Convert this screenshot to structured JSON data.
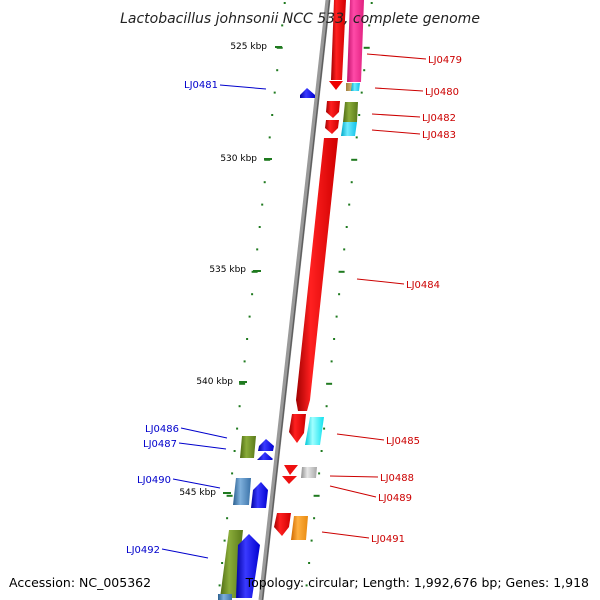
{
  "map": {
    "title": "Lactobacillus johnsonii NCC 533, complete genome",
    "accession": "Accession: NC_005362",
    "summary": "Topology: circular; Length: 1,992,676 bp; Genes: 1,918",
    "colors": {
      "backbone": "#909090",
      "tick": "#1f7a1f",
      "forward_label": "#cc0000",
      "reverse_label": "#0000cc"
    },
    "scale": [
      {
        "kbp": 525,
        "label": "525 kbp"
      },
      {
        "kbp": 530,
        "label": "530 kbp"
      },
      {
        "kbp": 535,
        "label": "535 kbp"
      },
      {
        "kbp": 540,
        "label": "540 kbp"
      },
      {
        "kbp": 545,
        "label": "545 kbp"
      }
    ],
    "genes": [
      {
        "id": "LJ0479",
        "label": "LJ0479",
        "strand": "forward",
        "cog_color": "#ff3399"
      },
      {
        "id": "LJ0480",
        "label": "LJ0480",
        "strand": "forward",
        "cog_color": "#33ccff"
      },
      {
        "id": "LJ0481",
        "label": "LJ0481",
        "strand": "reverse",
        "cog_color": "#0000ff"
      },
      {
        "id": "LJ0482",
        "label": "LJ0482",
        "strand": "forward",
        "cog_color": "#6b8e23"
      },
      {
        "id": "LJ0483",
        "label": "LJ0483",
        "strand": "forward",
        "cog_color": "#00bfff"
      },
      {
        "id": "LJ0484",
        "label": "LJ0484",
        "strand": "forward",
        "cog_color": "#ff0000"
      },
      {
        "id": "LJ0485",
        "label": "LJ0485",
        "strand": "forward",
        "cog_color": "#00ffff"
      },
      {
        "id": "LJ0486",
        "label": "LJ0486",
        "strand": "reverse",
        "cog_color": "#6b8e23"
      },
      {
        "id": "LJ0487",
        "label": "LJ0487",
        "strand": "reverse",
        "cog_color": "#0000ff"
      },
      {
        "id": "LJ0488",
        "label": "LJ0488",
        "strand": "forward",
        "cog_color": "#c0c0c0"
      },
      {
        "id": "LJ0489",
        "label": "LJ0489",
        "strand": "forward",
        "cog_color": "#ff0000"
      },
      {
        "id": "LJ0490",
        "label": "LJ0490",
        "strand": "reverse",
        "cog_color": "#4682b4"
      },
      {
        "id": "LJ0491",
        "label": "LJ0491",
        "strand": "forward",
        "cog_color": "#ff8c00"
      },
      {
        "id": "LJ0492",
        "label": "LJ0492",
        "strand": "reverse",
        "cog_color": "#6b8e23"
      }
    ]
  }
}
